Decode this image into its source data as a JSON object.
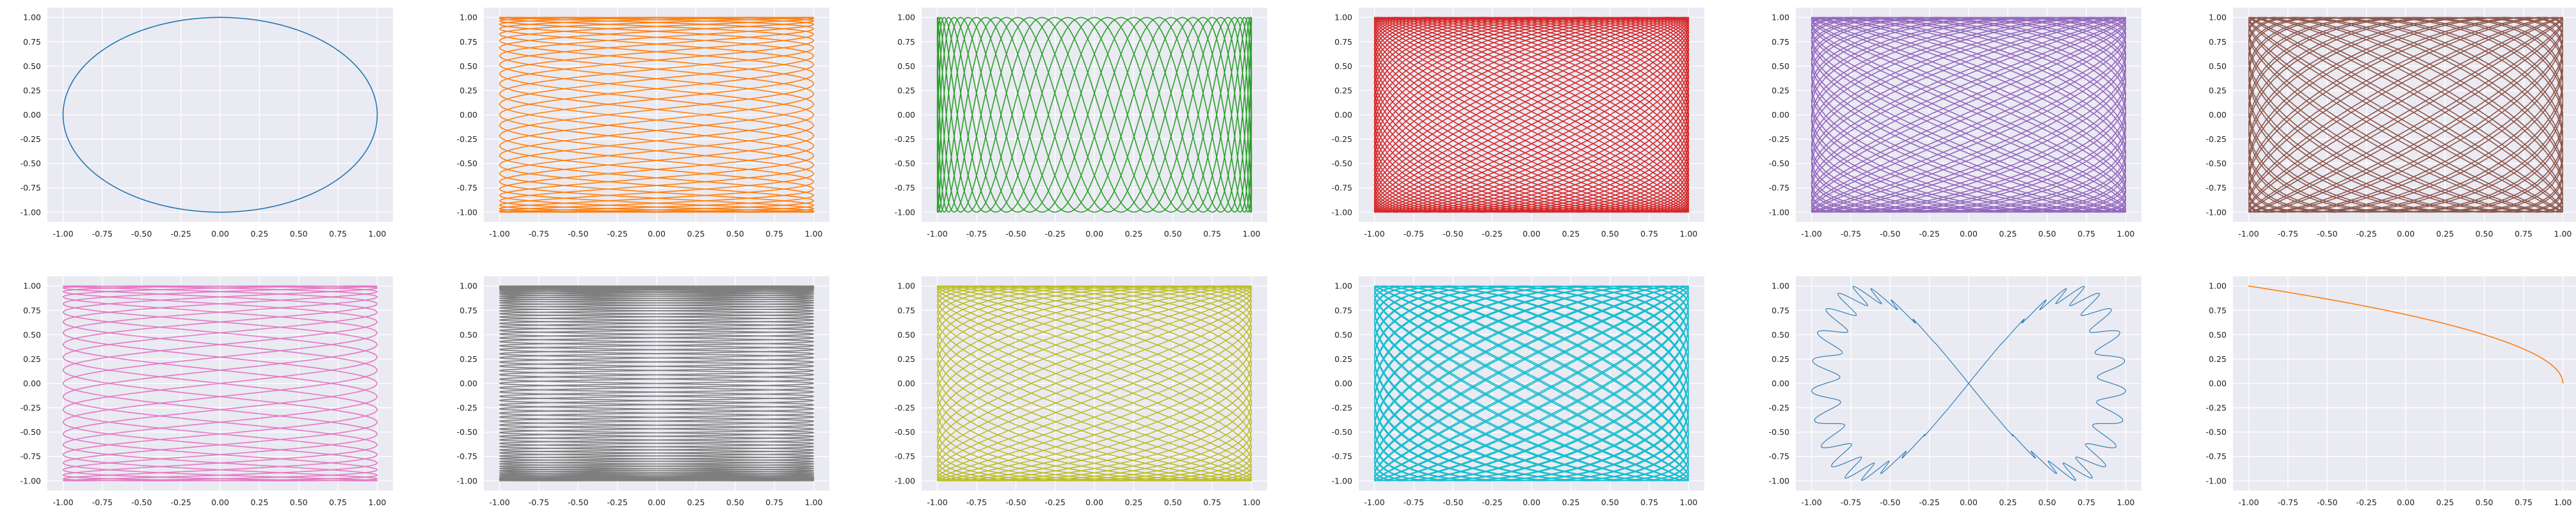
{
  "chart_data": [
    {
      "type": "line",
      "curve": "lissajous",
      "a": 1,
      "b": 1,
      "phase_deg": 90,
      "cycles": 1,
      "color": "#1f77b4",
      "xlim": [
        -1.1,
        1.1
      ],
      "ylim": [
        -1.1,
        1.1
      ],
      "xticks": [
        "-1.00",
        "-0.75",
        "-0.50",
        "-0.25",
        "0.00",
        "0.25",
        "0.50",
        "0.75",
        "1.00"
      ],
      "yticks": [
        "1.00",
        "0.75",
        "0.50",
        "0.25",
        "0.00",
        "-0.25",
        "-0.50",
        "-0.75",
        "-1.00"
      ],
      "grid": true
    },
    {
      "type": "line",
      "curve": "lissajous",
      "a": 29,
      "b": 5,
      "phase_deg": 90,
      "cycles": 7,
      "color": "#ff7f0e",
      "xlim": [
        -1.1,
        1.1
      ],
      "ylim": [
        -1.1,
        1.1
      ],
      "xticks": [
        "-1.00",
        "-0.75",
        "-0.50",
        "-0.25",
        "0.00",
        "0.25",
        "0.50",
        "0.75",
        "1.00"
      ],
      "yticks": [
        "1.00",
        "0.75",
        "0.50",
        "0.25",
        "0.00",
        "-0.25",
        "-0.50",
        "-0.75",
        "-1.00"
      ],
      "grid": true
    },
    {
      "type": "line",
      "curve": "lissajous",
      "a": 7,
      "b": 37,
      "phase_deg": 90,
      "cycles": 7,
      "color": "#2ca02c",
      "xlim": [
        -1.1,
        1.1
      ],
      "ylim": [
        -1.1,
        1.1
      ],
      "xticks": [
        "-1.00",
        "-0.75",
        "-0.50",
        "-0.25",
        "0.00",
        "0.25",
        "0.50",
        "0.75",
        "1.00"
      ],
      "yticks": [
        "1.00",
        "0.75",
        "0.50",
        "0.25",
        "0.00",
        "-0.25",
        "-0.50",
        "-0.75",
        "-1.00"
      ],
      "grid": true
    },
    {
      "type": "line",
      "curve": "lissajous",
      "a": 47,
      "b": 39,
      "phase_deg": 30,
      "cycles": 5,
      "color": "#d62728",
      "xlim": [
        -1.1,
        1.1
      ],
      "ylim": [
        -1.1,
        1.1
      ],
      "xticks": [
        "-1.00",
        "-0.75",
        "-0.50",
        "-0.25",
        "0.00",
        "0.25",
        "0.50",
        "0.75",
        "1.00"
      ],
      "yticks": [
        "1.00",
        "0.75",
        "0.50",
        "0.25",
        "0.00",
        "-0.25",
        "-0.50",
        "-0.75",
        "-1.00"
      ],
      "grid": true
    },
    {
      "type": "line",
      "curve": "lissajous",
      "a": 41,
      "b": 29,
      "phase_deg": 60,
      "cycles": 5,
      "color": "#9467bd",
      "xlim": [
        -1.1,
        1.1
      ],
      "ylim": [
        -1.1,
        1.1
      ],
      "xticks": [
        "-1.00",
        "-0.75",
        "-0.50",
        "-0.25",
        "0.00",
        "0.25",
        "0.50",
        "0.75",
        "1.00"
      ],
      "yticks": [
        "1.00",
        "0.75",
        "0.50",
        "0.25",
        "0.00",
        "-0.25",
        "-0.50",
        "-0.75",
        "-1.00"
      ],
      "grid": true
    },
    {
      "type": "line",
      "curve": "lissajous",
      "a": 33,
      "b": 31,
      "phase_deg": 45,
      "cycles": 5,
      "color": "#8c564b",
      "xlim": [
        -1.1,
        1.1
      ],
      "ylim": [
        -1.1,
        1.1
      ],
      "xticks": [
        "-1.00",
        "-0.75",
        "-0.50",
        "-0.25",
        "0.00",
        "0.25",
        "0.50",
        "0.75",
        "1.00"
      ],
      "yticks": [
        "1.00",
        "0.75",
        "0.50",
        "0.25",
        "0.00",
        "-0.25",
        "-0.50",
        "-0.75",
        "-1.00"
      ],
      "grid": true
    },
    {
      "type": "line",
      "curve": "lissajous",
      "a": 23,
      "b": 4,
      "phase_deg": 90,
      "cycles": 9,
      "color": "#e377c2",
      "xlim": [
        -1.1,
        1.1
      ],
      "ylim": [
        -1.1,
        1.1
      ],
      "xticks": [
        "-1.00",
        "-0.75",
        "-0.50",
        "-0.25",
        "0.00",
        "0.25",
        "0.50",
        "0.75",
        "1.00"
      ],
      "yticks": [
        "1.00",
        "0.75",
        "0.50",
        "0.25",
        "0.00",
        "-0.25",
        "-0.50",
        "-0.75",
        "-1.00"
      ],
      "grid": true
    },
    {
      "type": "line",
      "curve": "lissajous",
      "a": 71,
      "b": 2,
      "phase_deg": 88,
      "cycles": 1,
      "color": "#7f7f7f",
      "xlim": [
        -1.1,
        1.1
      ],
      "ylim": [
        -1.1,
        1.1
      ],
      "xticks": [
        "-1.00",
        "-0.75",
        "-0.50",
        "-0.25",
        "0.00",
        "0.25",
        "0.50",
        "0.75",
        "1.00"
      ],
      "yticks": [
        "1.00",
        "0.75",
        "0.50",
        "0.25",
        "0.00",
        "-0.25",
        "-0.50",
        "-0.75",
        "-1.00"
      ],
      "grid": true
    },
    {
      "type": "line",
      "curve": "lissajous",
      "a": 31,
      "b": 19,
      "phase_deg": 90,
      "cycles": 4,
      "color": "#bcbd22",
      "xlim": [
        -1.1,
        1.1
      ],
      "ylim": [
        -1.1,
        1.1
      ],
      "xticks": [
        "-1.00",
        "-0.75",
        "-0.50",
        "-0.25",
        "0.00",
        "0.25",
        "0.50",
        "0.75",
        "1.00"
      ],
      "yticks": [
        "1.00",
        "0.75",
        "0.50",
        "0.25",
        "0.00",
        "-0.25",
        "-0.50",
        "-0.75",
        "-1.00"
      ],
      "grid": true
    },
    {
      "type": "line",
      "curve": "lissajous",
      "a": 43,
      "b": 37,
      "phase_deg": 20,
      "cycles": 5,
      "color": "#17becf",
      "xlim": [
        -1.1,
        1.1
      ],
      "ylim": [
        -1.1,
        1.1
      ],
      "xticks": [
        "-1.00",
        "-0.75",
        "-0.50",
        "-0.25",
        "0.00",
        "0.25",
        "0.50",
        "0.75",
        "1.00"
      ],
      "yticks": [
        "1.00",
        "0.75",
        "0.50",
        "0.25",
        "0.00",
        "-0.25",
        "-0.50",
        "-0.75",
        "-1.00"
      ],
      "grid": true
    },
    {
      "type": "line",
      "curve": "lissajous",
      "a": 1,
      "b": 2,
      "phase_deg": 90,
      "cycles": 1,
      "band_turns": 40,
      "band_width": 0.18,
      "color": "#1f77b4",
      "xlim": [
        -1.1,
        1.1
      ],
      "ylim": [
        -1.1,
        1.1
      ],
      "xticks": [
        "-1.00",
        "-0.75",
        "-0.50",
        "-0.25",
        "0.00",
        "0.25",
        "0.50",
        "0.75",
        "1.00"
      ],
      "yticks": [
        "1.00",
        "0.75",
        "0.50",
        "0.25",
        "0.00",
        "-0.25",
        "-0.50",
        "-0.75",
        "-1.00"
      ],
      "grid": true
    },
    {
      "type": "line",
      "curve": "lissajous",
      "a": 2,
      "b": 1,
      "phase_deg": 90,
      "cycles": 0.5,
      "color": "#ff7f0e",
      "xlim": [
        -1.1,
        1.1
      ],
      "ylim": [
        -1.1,
        1.1
      ],
      "xticks": [
        "-1.00",
        "-0.75",
        "-0.50",
        "-0.25",
        "0.00",
        "0.25",
        "0.50",
        "0.75",
        "1.00"
      ],
      "yticks": [
        "1.00",
        "0.75",
        "0.50",
        "0.25",
        "0.00",
        "-0.25",
        "-0.50",
        "-0.75",
        "-1.00"
      ],
      "grid": true
    }
  ],
  "colors": {
    "axes_background": "#eaeaf2",
    "grid": "#ffffff",
    "tick_text": "#222222"
  }
}
